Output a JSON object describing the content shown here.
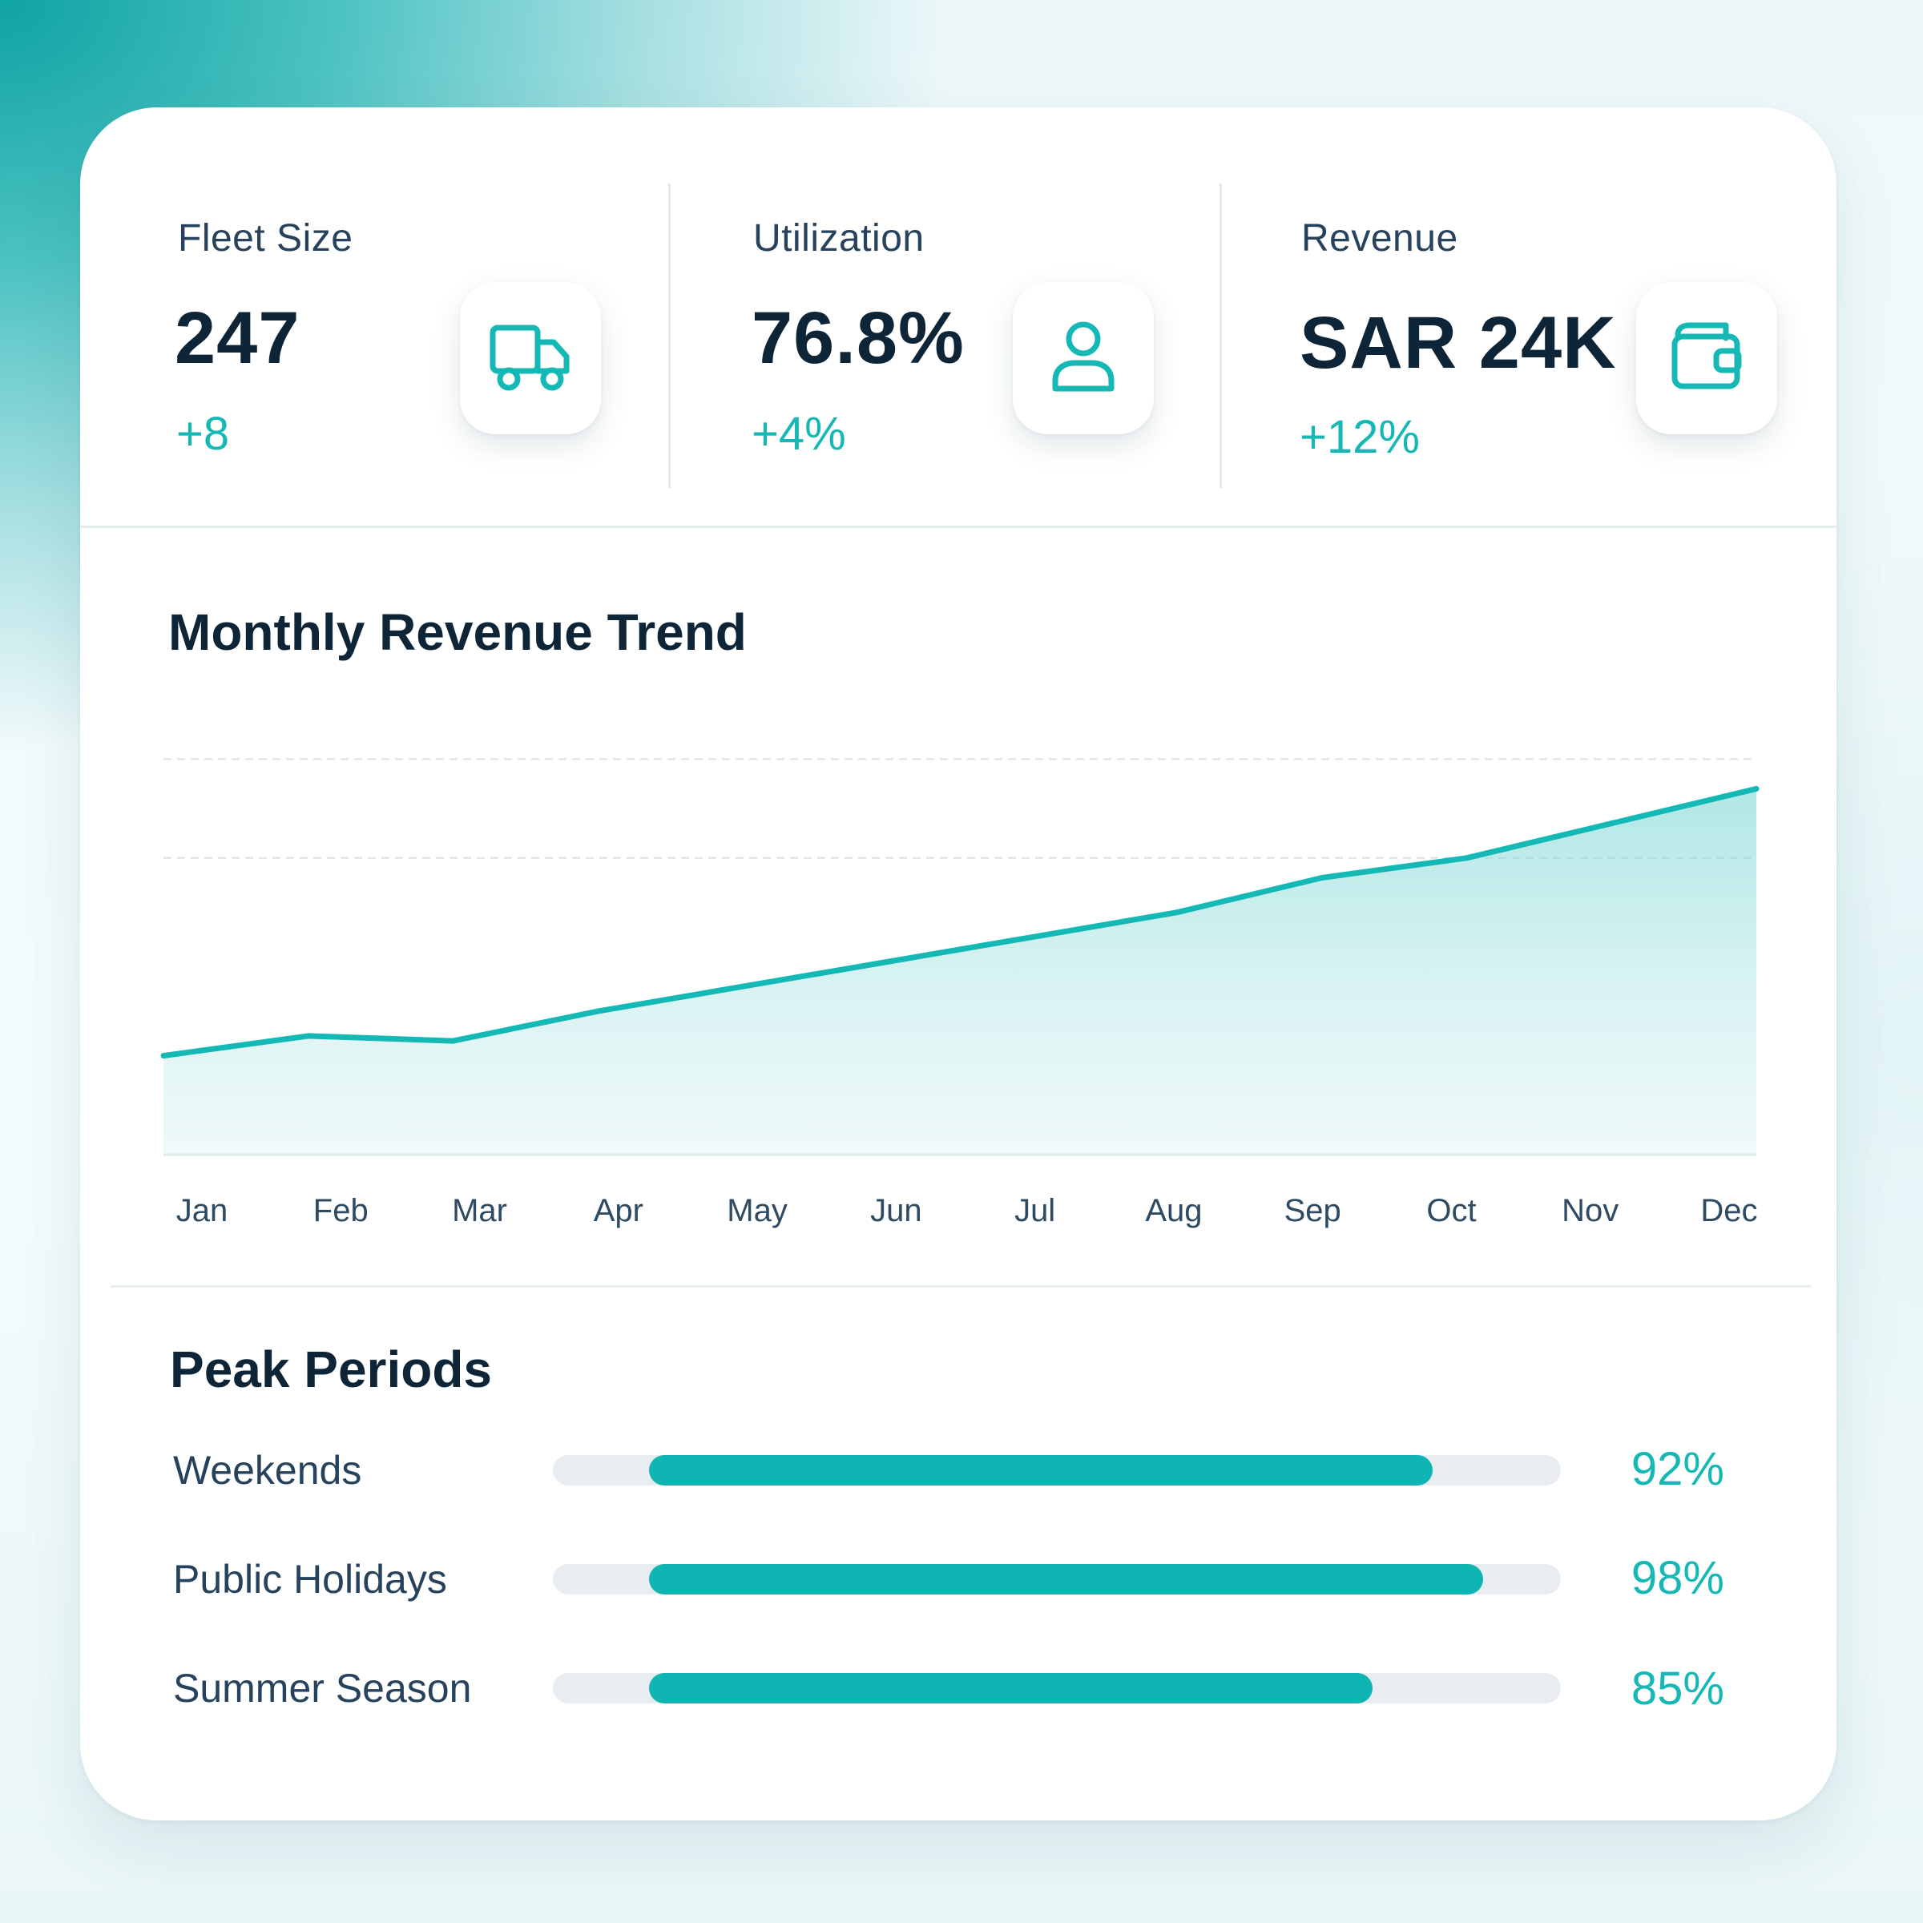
{
  "kpis": [
    {
      "label": "Fleet Size",
      "value": "247",
      "delta": "+8",
      "icon": "truck-icon"
    },
    {
      "label": "Utilization",
      "value": "76.8%",
      "delta": "+4%",
      "icon": "user-icon"
    },
    {
      "label": "Revenue",
      "value": "SAR 24K",
      "delta": "+12%",
      "icon": "wallet-icon"
    }
  ],
  "accent_color": "#15b8b4",
  "revenue_chart": {
    "title": "Monthly Revenue Trend"
  },
  "chart_data": {
    "type": "area",
    "title": "Monthly Revenue Trend",
    "categories": [
      "Jan",
      "Feb",
      "Mar",
      "Apr",
      "May",
      "Jun",
      "Jul",
      "Aug",
      "Sep",
      "Oct",
      "Nov",
      "Dec"
    ],
    "series": [
      {
        "values": [
          20,
          24,
          23,
          29,
          34,
          39,
          44,
          49,
          56,
          60,
          67,
          74
        ]
      }
    ],
    "ylim": [
      0,
      100
    ],
    "gridlines": [
      60,
      80
    ],
    "grid": true,
    "legend": "none",
    "color": "#14b8b4"
  },
  "peak_periods": {
    "title": "Peak Periods",
    "items": [
      {
        "label": "Weekends",
        "value": "92%",
        "level": 0.92
      },
      {
        "label": "Public Holidays",
        "value": "98%",
        "level": 0.98
      },
      {
        "label": "Summer Season",
        "value": "85%",
        "level": 0.85
      }
    ]
  }
}
